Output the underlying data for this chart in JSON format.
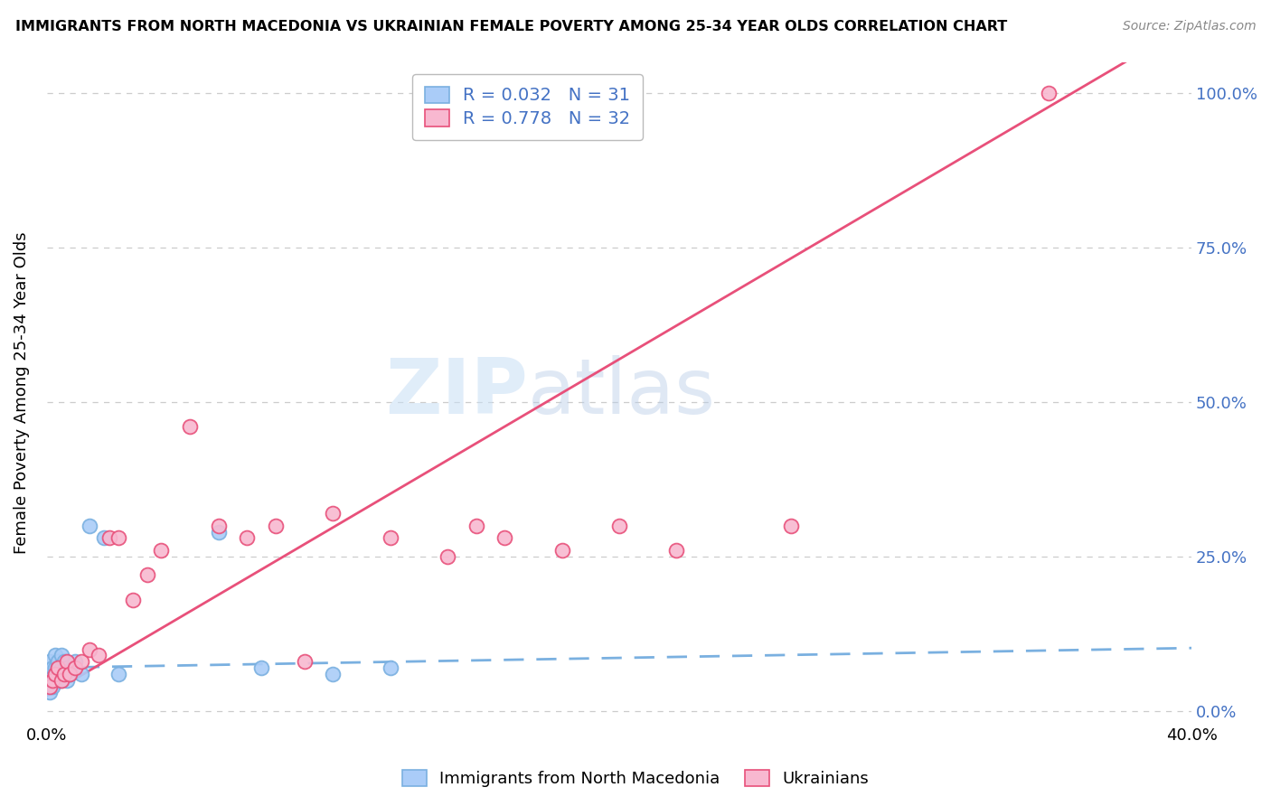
{
  "title": "IMMIGRANTS FROM NORTH MACEDONIA VS UKRAINIAN FEMALE POVERTY AMONG 25-34 YEAR OLDS CORRELATION CHART",
  "source": "Source: ZipAtlas.com",
  "ylabel": "Female Poverty Among 25-34 Year Olds",
  "watermark_zip": "ZIP",
  "watermark_atlas": "atlas",
  "legend_r1": "R = 0.032",
  "legend_n1": "N = 31",
  "legend_r2": "R = 0.778",
  "legend_n2": "N = 32",
  "series1_label": "Immigrants from North Macedonia",
  "series2_label": "Ukrainians",
  "color1": "#aaccf8",
  "color2": "#f8b8d0",
  "trendline1_color": "#7ab0e0",
  "trendline2_color": "#e8507a",
  "background_color": "#ffffff",
  "grid_color": "#cccccc",
  "xlim": [
    0.0,
    0.4
  ],
  "ylim": [
    -0.02,
    1.05
  ],
  "series1_x": [
    0.001,
    0.001,
    0.001,
    0.002,
    0.002,
    0.002,
    0.003,
    0.003,
    0.003,
    0.003,
    0.004,
    0.004,
    0.004,
    0.005,
    0.005,
    0.005,
    0.006,
    0.006,
    0.007,
    0.007,
    0.008,
    0.009,
    0.01,
    0.012,
    0.015,
    0.02,
    0.025,
    0.06,
    0.075,
    0.1,
    0.12
  ],
  "series1_y": [
    0.03,
    0.05,
    0.08,
    0.04,
    0.06,
    0.07,
    0.05,
    0.06,
    0.07,
    0.09,
    0.06,
    0.07,
    0.08,
    0.05,
    0.07,
    0.09,
    0.06,
    0.08,
    0.05,
    0.07,
    0.06,
    0.07,
    0.08,
    0.06,
    0.3,
    0.28,
    0.06,
    0.29,
    0.07,
    0.06,
    0.07
  ],
  "series2_x": [
    0.001,
    0.002,
    0.003,
    0.004,
    0.005,
    0.006,
    0.007,
    0.008,
    0.01,
    0.012,
    0.015,
    0.018,
    0.022,
    0.025,
    0.03,
    0.035,
    0.04,
    0.05,
    0.06,
    0.07,
    0.08,
    0.09,
    0.1,
    0.12,
    0.14,
    0.15,
    0.16,
    0.18,
    0.2,
    0.22,
    0.26,
    0.35
  ],
  "series2_y": [
    0.04,
    0.05,
    0.06,
    0.07,
    0.05,
    0.06,
    0.08,
    0.06,
    0.07,
    0.08,
    0.1,
    0.09,
    0.28,
    0.28,
    0.18,
    0.22,
    0.26,
    0.46,
    0.3,
    0.28,
    0.3,
    0.08,
    0.32,
    0.28,
    0.25,
    0.3,
    0.28,
    0.26,
    0.3,
    0.26,
    0.3,
    1.0
  ],
  "trendline1_slope": 0.08,
  "trendline1_intercept": 0.07,
  "trendline2_slope": 2.72,
  "trendline2_intercept": 0.025
}
